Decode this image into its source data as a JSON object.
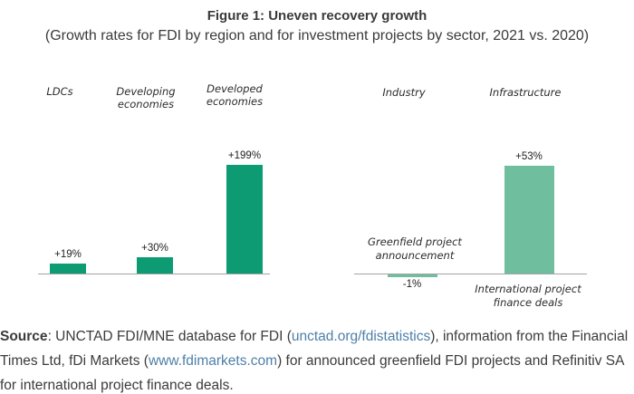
{
  "figure": {
    "title": "Figure 1: Uneven recovery growth",
    "subtitle": "(Growth rates for FDI by region and for investment projects by sector, 2021 vs. 2020)"
  },
  "chart_data": [
    {
      "type": "bar",
      "panel": "fdi-growth-by-region",
      "categories": [
        "LDCs",
        "Developing economies",
        "Developed economies"
      ],
      "values": [
        19,
        30,
        199
      ],
      "value_labels": [
        "+19%",
        "+30%",
        "+199%"
      ],
      "bar_color": "#0d9b74",
      "baseline_color": "#a3a3a3",
      "ylim": [
        0,
        210
      ],
      "grid": false,
      "legend": false
    },
    {
      "type": "bar",
      "panel": "investment-projects-growth-by-sector",
      "categories": [
        "Industry",
        "Infrastructure"
      ],
      "values": [
        -1,
        53
      ],
      "value_labels": [
        "-1%",
        "+53%"
      ],
      "bar_annotations": [
        "Greenfield project announcement",
        "International project finance deals"
      ],
      "bar_color": "#6fbf9f",
      "baseline_color": "#a3a3a3",
      "ylim": [
        -5,
        60
      ],
      "grid": false,
      "legend": false
    }
  ],
  "source": {
    "label": "Source",
    "seg1": ": UNCTAD FDI/MNE database for FDI (",
    "link1": "unctad.org/fdistatistics",
    "seg2": "), information from the Financial Times Ltd, fDi Markets (",
    "link2": "www.fdimarkets.com",
    "seg3": ") for announced greenfield FDI projects and Refinitiv SA for international project finance deals."
  }
}
